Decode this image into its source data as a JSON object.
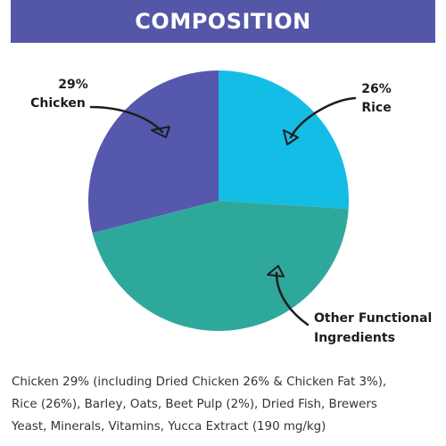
{
  "header": {
    "title": "COMPOSITION"
  },
  "colors": {
    "header_bg": "#5457a8",
    "chicken": "#5658ad",
    "rice": "#13bde5",
    "other": "#2fa89c"
  },
  "chart_data": {
    "type": "pie",
    "title": "COMPOSITION",
    "slices": [
      {
        "label_lines": [
          "29%",
          "Chicken"
        ],
        "value": 29,
        "color": "#5658ad"
      },
      {
        "label_lines": [
          "26%",
          "Rice"
        ],
        "value": 26,
        "color": "#13bde5"
      },
      {
        "label_lines": [
          "Other Functional",
          "Ingredients"
        ],
        "value": 45,
        "color": "#2fa89c"
      }
    ],
    "start_angle_deg": 0,
    "legend": "none",
    "annotations": "curved arrows pointing from labels into slices"
  },
  "description": {
    "lines": [
      "Chicken 29% (including Dried Chicken 26% & Chicken Fat 3%),",
      "Rice (26%), Barley, Oats, Beet Pulp (2%), Dried Fish, Brewers",
      "Yeast, Minerals, Vitamins, Yucca Extract (190 mg/kg)"
    ]
  }
}
